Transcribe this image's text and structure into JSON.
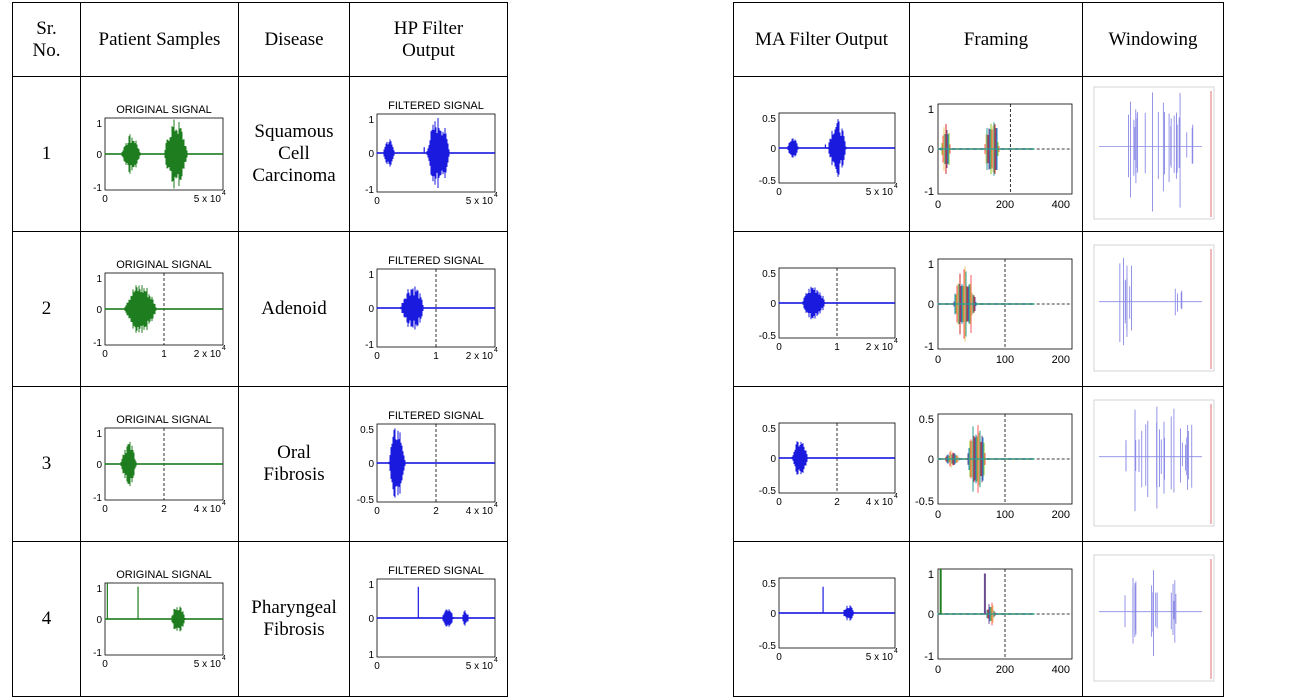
{
  "left_headers": {
    "sr": "Sr.\nNo.",
    "samples": "Patient Samples",
    "disease": "Disease",
    "hp": "HP Filter\nOutput"
  },
  "right_headers": {
    "ma": "MA Filter Output",
    "framing": "Framing",
    "windowing": "Windowing"
  },
  "plot_titles": {
    "original": "ORIGINAL SIGNAL",
    "filtered": "FILTERED SIGNAL"
  },
  "rows": [
    {
      "sr": "1",
      "disease": "Squamous\nCell\nCarcinoma",
      "orig": {
        "y": [
          "1",
          "0",
          "-1"
        ],
        "x0": "0",
        "xmid": "",
        "xend": "5 x 10",
        "exp": "4"
      },
      "hp": {
        "y": [
          "1",
          "0",
          "-1"
        ],
        "x0": "0",
        "xmid": "",
        "xend": "5 x 10",
        "exp": "4"
      },
      "ma": {
        "y": [
          "0.5",
          "0",
          "-0.5"
        ],
        "x0": "0",
        "xmid": "",
        "xend": "5 x 10",
        "exp": "4"
      },
      "fr": {
        "y": [
          "1",
          "0",
          "-1"
        ],
        "x0": "0",
        "xmid": "200",
        "xend": "400",
        "exp": ""
      }
    },
    {
      "sr": "2",
      "disease": "Adenoid",
      "orig": {
        "y": [
          "1",
          "0",
          "-1"
        ],
        "x0": "0",
        "xmid": "1",
        "xend": "2 x 10",
        "exp": "4"
      },
      "hp": {
        "y": [
          "1",
          "0",
          "-1"
        ],
        "x0": "0",
        "xmid": "1",
        "xend": "2 x 10",
        "exp": "4"
      },
      "ma": {
        "y": [
          "0.5",
          "0",
          "-0.5"
        ],
        "x0": "0",
        "xmid": "1",
        "xend": "2 x 10",
        "exp": "4"
      },
      "fr": {
        "y": [
          "1",
          "0",
          "-1"
        ],
        "x0": "0",
        "xmid": "100",
        "xend": "200",
        "exp": ""
      }
    },
    {
      "sr": "3",
      "disease": "Oral\nFibrosis",
      "orig": {
        "y": [
          "1",
          "0",
          "-1"
        ],
        "x0": "0",
        "xmid": "2",
        "xend": "4 x 10",
        "exp": "4"
      },
      "hp": {
        "y": [
          "0.5",
          "0",
          "-0.5"
        ],
        "x0": "0",
        "xmid": "2",
        "xend": "4 x 10",
        "exp": "4"
      },
      "ma": {
        "y": [
          "0.5",
          "0",
          "-0.5"
        ],
        "x0": "0",
        "xmid": "2",
        "xend": "4 x 10",
        "exp": "4"
      },
      "fr": {
        "y": [
          "0.5",
          "0",
          "-0.5"
        ],
        "x0": "0",
        "xmid": "100",
        "xend": "200",
        "exp": ""
      }
    },
    {
      "sr": "4",
      "disease": "Pharyngeal\nFibrosis",
      "orig": {
        "y": [
          "1",
          "0",
          "-1"
        ],
        "x0": "0",
        "xmid": "",
        "xend": "5 x 10",
        "exp": "4"
      },
      "hp": {
        "y": [
          "1",
          "0",
          "1"
        ],
        "x0": "0",
        "xmid": "",
        "xend": "5 x 10",
        "exp": "4"
      },
      "ma": {
        "y": [
          "0.5",
          "0",
          "-0.5"
        ],
        "x0": "0",
        "xmid": "",
        "xend": "5 x 10",
        "exp": "4"
      },
      "fr": {
        "y": [
          "1",
          "0",
          "-1"
        ],
        "x0": "0",
        "xmid": "200",
        "xend": "400",
        "exp": ""
      }
    }
  ],
  "colors": {
    "original": "#1e7d1e",
    "filtered": "#1a1adf",
    "windowing": "#8a8ae6",
    "windowing_marker": "#e07070",
    "framing_multi": [
      "#2a9d8f",
      "#d62828",
      "#6a4c93",
      "#1982c4",
      "#8ac926",
      "#ff595e",
      "#e9c46a"
    ]
  }
}
